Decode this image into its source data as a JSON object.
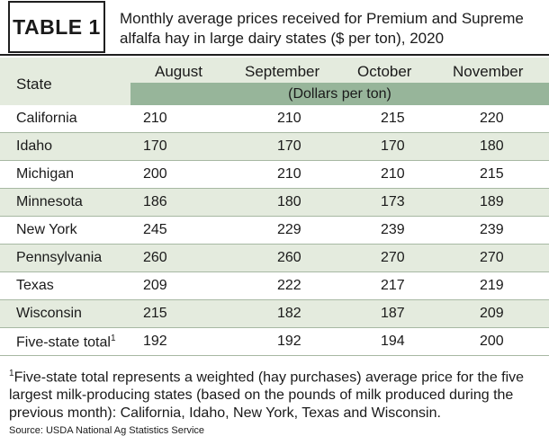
{
  "header": {
    "label": "TABLE 1",
    "title": "Monthly average prices received for Premium and Supreme alfalfa hay in large dairy states ($ per ton), 2020"
  },
  "columns": {
    "state": "State",
    "months": [
      "August",
      "September",
      "October",
      "November"
    ],
    "unit": "(Dollars per ton)"
  },
  "rows": [
    {
      "state": "California",
      "values": [
        "210",
        "210",
        "215",
        "220"
      ]
    },
    {
      "state": "Idaho",
      "values": [
        "170",
        "170",
        "170",
        "180"
      ]
    },
    {
      "state": "Michigan",
      "values": [
        "200",
        "210",
        "210",
        "215"
      ]
    },
    {
      "state": "Minnesota",
      "values": [
        "186",
        "180",
        "173",
        "189"
      ]
    },
    {
      "state": "New York",
      "values": [
        "245",
        "229",
        "239",
        "239"
      ]
    },
    {
      "state": "Pennsylvania",
      "values": [
        "260",
        "260",
        "270",
        "270"
      ]
    },
    {
      "state": "Texas",
      "values": [
        "209",
        "222",
        "217",
        "219"
      ]
    },
    {
      "state": "Wisconsin",
      "values": [
        "215",
        "182",
        "187",
        "209"
      ]
    },
    {
      "state": "Five-state total",
      "sup": "1",
      "values": [
        "192",
        "192",
        "194",
        "200"
      ]
    }
  ],
  "footnote": {
    "marker": "1",
    "text": "Five-state total represents a weighted (hay purchases) average price for the five largest milk-producing states (based on the pounds of milk produced during the previous month): California, Idaho, New York, Texas and Wisconsin."
  },
  "source": "Source: USDA National Ag Statistics Service",
  "colors": {
    "band_light": "#e4ebde",
    "band_dark": "#97b59a"
  }
}
